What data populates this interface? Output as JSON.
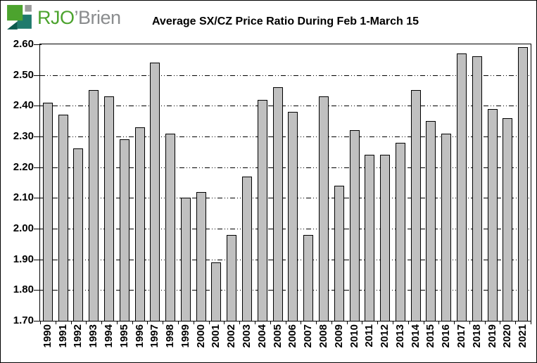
{
  "logo": {
    "brand_green": "RJO",
    "brand_gray": "’Brien",
    "colors": {
      "green": "#4ca32e",
      "gray": "#8a8c8e",
      "teal": "#1f7a6c",
      "dark_teal": "#0c5b4f",
      "icon_gray": "#9b9b9b"
    }
  },
  "chart_data": {
    "type": "bar",
    "title": "Average SX/CZ Price Ratio During Feb 1-March 15",
    "categories": [
      "1990",
      "1991",
      "1992",
      "1993",
      "1994",
      "1995",
      "1996",
      "1997",
      "1998",
      "1999",
      "2000",
      "2001",
      "2002",
      "2003",
      "2004",
      "2005",
      "2006",
      "2007",
      "2008",
      "2009",
      "2010",
      "2011",
      "2012",
      "2013",
      "2014",
      "2015",
      "2016",
      "2017",
      "2018",
      "2019",
      "2020",
      "2021"
    ],
    "values": [
      2.41,
      2.37,
      2.26,
      2.45,
      2.43,
      2.29,
      2.33,
      2.54,
      2.31,
      2.1,
      2.12,
      1.89,
      1.98,
      2.17,
      2.42,
      2.46,
      2.38,
      1.98,
      2.43,
      2.14,
      2.32,
      2.24,
      2.24,
      2.28,
      2.45,
      2.35,
      2.31,
      2.57,
      2.56,
      2.39,
      2.36,
      2.59
    ],
    "xlabel": "",
    "ylabel": "",
    "ylim": [
      1.7,
      2.6
    ],
    "ytick_labels": [
      "2.60",
      "2.50",
      "2.40",
      "2.30",
      "2.20",
      "2.10",
      "2.00",
      "1.90",
      "1.80",
      "1.70"
    ],
    "grid": "horizontal-dashed",
    "legend": "none",
    "bar_fill": "#c0c0c0",
    "bar_border": "#000000"
  }
}
